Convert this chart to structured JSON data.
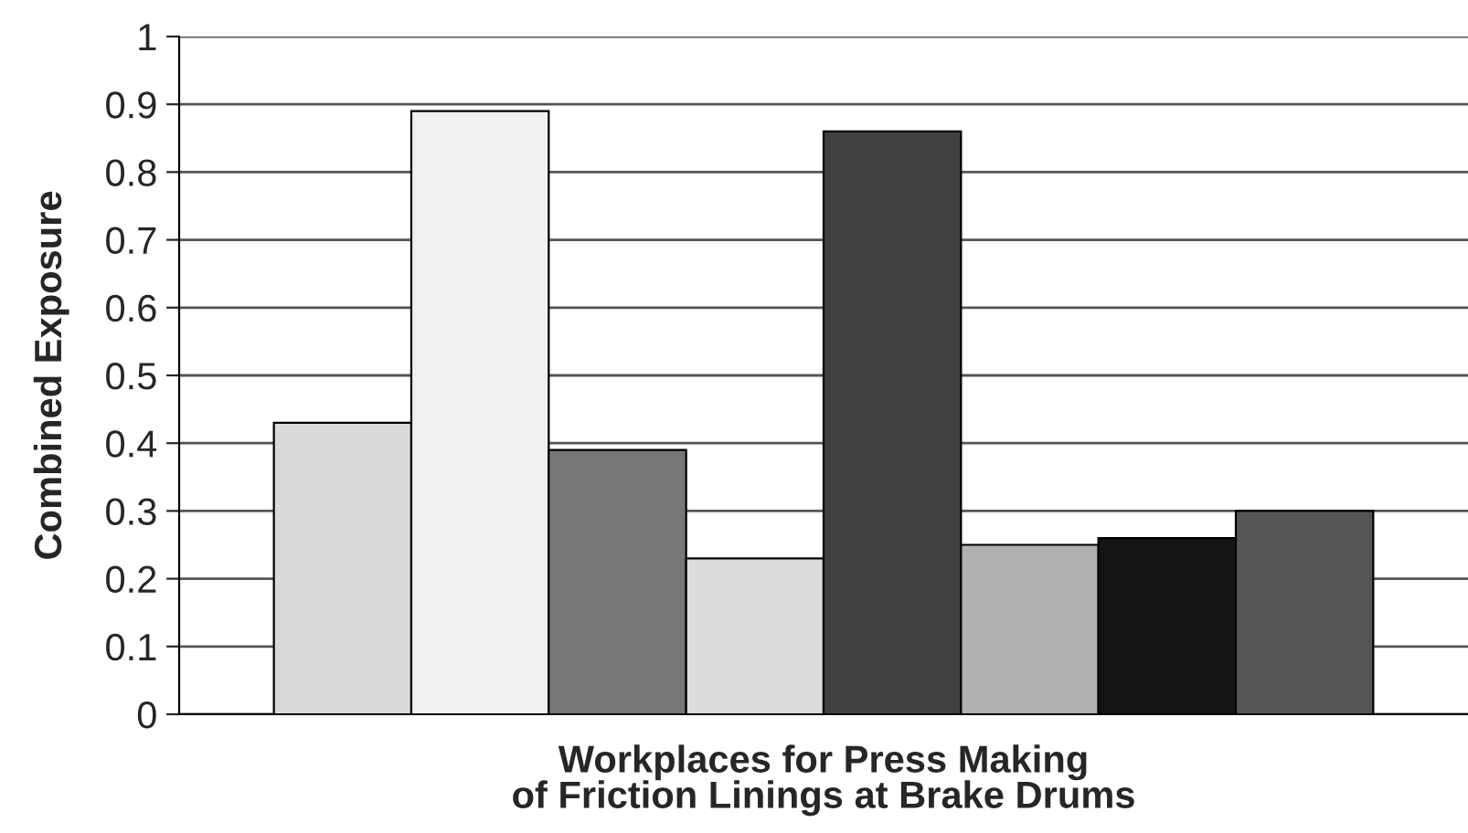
{
  "chart_data": {
    "type": "bar",
    "xlabel": "Workplaces for Press Making\nof Friction Linings at Brake Drums",
    "ylabel": "Combined Exposure",
    "categories": [
      null
    ],
    "series": [
      {
        "color": "#d9d9d9",
        "values": [
          0.43
        ]
      },
      {
        "color": "#f0f0f0",
        "values": [
          0.89
        ]
      },
      {
        "color": "#777777",
        "values": [
          0.39
        ]
      },
      {
        "color": "#dcdcdc",
        "values": [
          0.23
        ]
      },
      {
        "color": "#404040",
        "values": [
          0.86
        ]
      },
      {
        "color": "#b0b0b0",
        "values": [
          0.25
        ]
      },
      {
        "color": "#141414",
        "values": [
          0.26
        ]
      },
      {
        "color": "#555555",
        "values": [
          0.3
        ]
      }
    ],
    "ylim": [
      0,
      1
    ],
    "yticks": [
      0,
      0.1,
      0.2,
      0.3,
      0.4,
      0.5,
      0.6,
      0.7,
      0.8,
      0.9,
      1
    ],
    "grid": "y",
    "tick_labels": "y"
  }
}
